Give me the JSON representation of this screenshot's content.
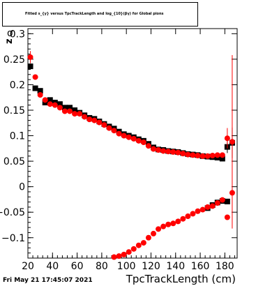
{
  "title": "Fitted s_{y} versus TpcTrackLength and log_{10}(βγ) for Global pions",
  "footer": "Fri May 21 17:45:07 2021",
  "chart_data": {
    "type": "scatter",
    "title": "Fitted s_{y} versus TpcTrackLength and log_{10}(βγ) for Global pions",
    "xlabel": "TpcTrackLength (cm)",
    "ylabel": "z",
    "ylabel_extra": "σ",
    "xlim": [
      20,
      190
    ],
    "ylim": [
      -0.14,
      0.31
    ],
    "xticks": [
      20,
      40,
      60,
      80,
      100,
      120,
      140,
      160,
      180
    ],
    "yticks": [
      -0.1,
      -0.05,
      0,
      0.05,
      0.1,
      0.15,
      0.2,
      0.25,
      0.3
    ],
    "ytick_labels": [
      "−0.1",
      "−0.05",
      "0",
      "0.05",
      "0.1",
      "0.15",
      "0.2",
      "0.25",
      "0.3"
    ],
    "series": [
      {
        "color": "#000000",
        "marker": "square",
        "points": [
          [
            22,
            0.236
          ],
          [
            26,
            0.193
          ],
          [
            30,
            0.188
          ],
          [
            34,
            0.165
          ],
          [
            38,
            0.17
          ],
          [
            42,
            0.165
          ],
          [
            46,
            0.162
          ],
          [
            50,
            0.155
          ],
          [
            54,
            0.155
          ],
          [
            58,
            0.15
          ],
          [
            62,
            0.145
          ],
          [
            66,
            0.14
          ],
          [
            70,
            0.135
          ],
          [
            74,
            0.133
          ],
          [
            78,
            0.128
          ],
          [
            82,
            0.123
          ],
          [
            86,
            0.118
          ],
          [
            90,
            0.114
          ],
          [
            94,
            0.108
          ],
          [
            98,
            0.103
          ],
          [
            102,
            0.1
          ],
          [
            106,
            0.097
          ],
          [
            110,
            0.093
          ],
          [
            114,
            0.09
          ],
          [
            118,
            0.084
          ],
          [
            122,
            0.077
          ],
          [
            126,
            0.073
          ],
          [
            130,
            0.072
          ],
          [
            134,
            0.07
          ],
          [
            138,
            0.069
          ],
          [
            142,
            0.068
          ],
          [
            146,
            0.066
          ],
          [
            150,
            0.064
          ],
          [
            154,
            0.063
          ],
          [
            158,
            0.062
          ],
          [
            162,
            0.06
          ],
          [
            166,
            0.059
          ],
          [
            170,
            0.058
          ],
          [
            174,
            0.057
          ],
          [
            178,
            0.055
          ],
          [
            182,
            0.078
          ],
          [
            186,
            0.086
          ],
          [
            166,
            -0.042
          ],
          [
            170,
            -0.036
          ],
          [
            174,
            -0.031
          ],
          [
            178,
            -0.028
          ],
          [
            182,
            -0.029
          ]
        ],
        "errors": [
          [
            182,
            0.012
          ],
          [
            186,
            0.03
          ]
        ]
      },
      {
        "color": "#ff0000",
        "marker": "circle",
        "points": [
          [
            22,
            0.254
          ],
          [
            26,
            0.215
          ],
          [
            30,
            0.18
          ],
          [
            34,
            0.17
          ],
          [
            38,
            0.162
          ],
          [
            42,
            0.16
          ],
          [
            46,
            0.155
          ],
          [
            50,
            0.148
          ],
          [
            54,
            0.148
          ],
          [
            58,
            0.143
          ],
          [
            62,
            0.143
          ],
          [
            66,
            0.137
          ],
          [
            70,
            0.132
          ],
          [
            74,
            0.13
          ],
          [
            78,
            0.126
          ],
          [
            82,
            0.121
          ],
          [
            86,
            0.115
          ],
          [
            90,
            0.11
          ],
          [
            94,
            0.104
          ],
          [
            98,
            0.1
          ],
          [
            102,
            0.097
          ],
          [
            106,
            0.094
          ],
          [
            110,
            0.09
          ],
          [
            114,
            0.087
          ],
          [
            118,
            0.08
          ],
          [
            122,
            0.074
          ],
          [
            126,
            0.072
          ],
          [
            130,
            0.07
          ],
          [
            134,
            0.069
          ],
          [
            138,
            0.068
          ],
          [
            142,
            0.067
          ],
          [
            146,
            0.065
          ],
          [
            150,
            0.063
          ],
          [
            154,
            0.062
          ],
          [
            158,
            0.061
          ],
          [
            162,
            0.06
          ],
          [
            166,
            0.06
          ],
          [
            170,
            0.061
          ],
          [
            174,
            0.062
          ],
          [
            178,
            0.062
          ],
          [
            182,
            0.095
          ],
          [
            186,
            0.088
          ],
          [
            90,
            -0.138
          ],
          [
            94,
            -0.136
          ],
          [
            98,
            -0.133
          ],
          [
            102,
            -0.128
          ],
          [
            106,
            -0.122
          ],
          [
            110,
            -0.115
          ],
          [
            114,
            -0.11
          ],
          [
            118,
            -0.1
          ],
          [
            122,
            -0.092
          ],
          [
            126,
            -0.083
          ],
          [
            130,
            -0.078
          ],
          [
            134,
            -0.074
          ],
          [
            138,
            -0.072
          ],
          [
            142,
            -0.068
          ],
          [
            146,
            -0.063
          ],
          [
            150,
            -0.058
          ],
          [
            154,
            -0.053
          ],
          [
            158,
            -0.048
          ],
          [
            162,
            -0.045
          ],
          [
            166,
            -0.04
          ],
          [
            170,
            -0.038
          ],
          [
            174,
            -0.032
          ],
          [
            178,
            -0.026
          ],
          [
            182,
            -0.06
          ],
          [
            186,
            -0.012
          ]
        ],
        "errors": [
          [
            182,
            0.02
          ],
          [
            186,
            0.17
          ],
          [
            22,
            0.012
          ]
        ]
      }
    ]
  }
}
